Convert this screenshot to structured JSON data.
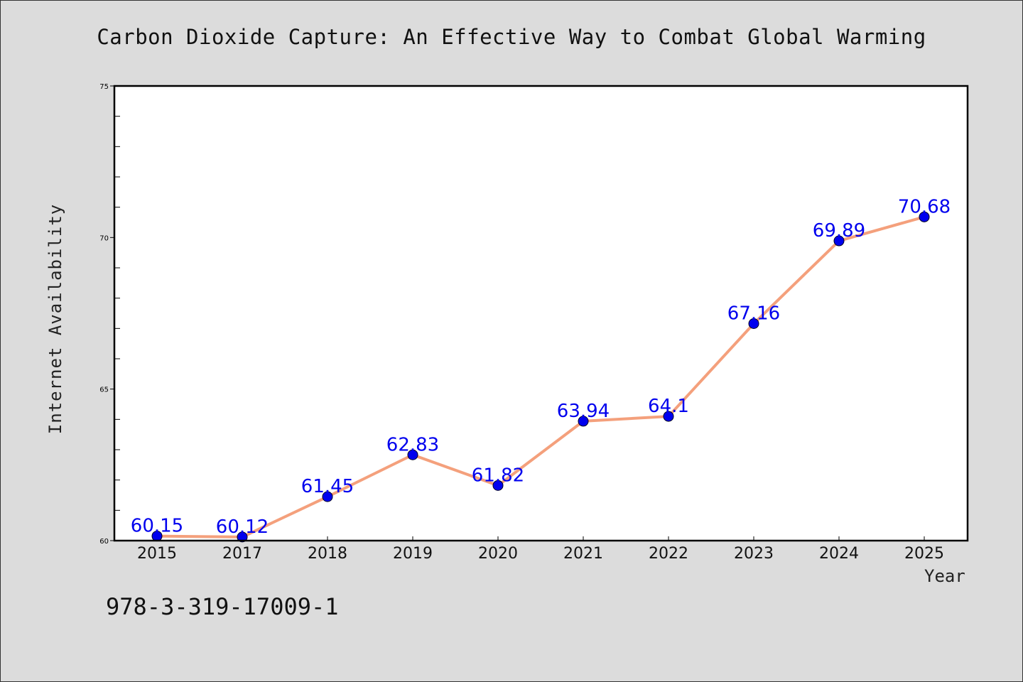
{
  "chart_data": {
    "type": "line",
    "title": "Carbon Dioxide Capture: An Effective Way to Combat Global Warming",
    "xlabel": "Year",
    "ylabel": "Internet Availability",
    "categories": [
      "2015",
      "2017",
      "2018",
      "2019",
      "2020",
      "2021",
      "2022",
      "2023",
      "2024",
      "2025"
    ],
    "values": [
      60.15,
      60.12,
      61.45,
      62.83,
      61.82,
      63.94,
      64.1,
      67.16,
      69.89,
      70.68
    ],
    "data_labels": [
      "60.15",
      "60.12",
      "61.45",
      "62.83",
      "61.82",
      "63.94",
      "64.1",
      "67.16",
      "69.89",
      "70.68"
    ],
    "ylim": [
      60,
      75
    ],
    "y_major_ticks": [
      60,
      65,
      70,
      75
    ],
    "y_minor_step": 1,
    "grid": false,
    "line_color": "#f4a07c",
    "marker_color": "#0000ee",
    "label_color": "#0000ee"
  },
  "annotation": "978-3-319-17009-1"
}
